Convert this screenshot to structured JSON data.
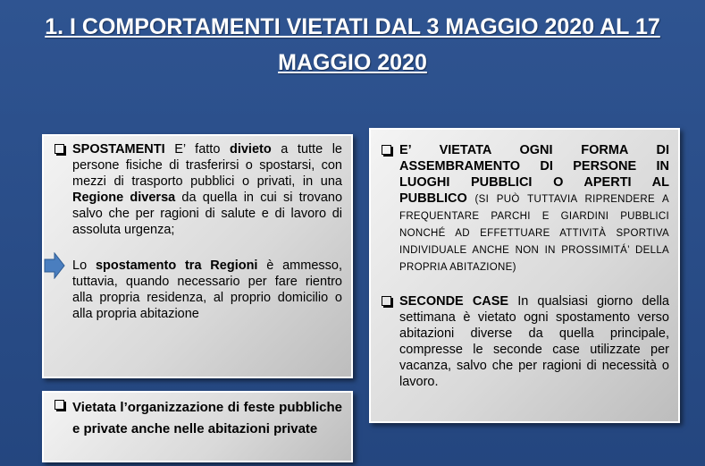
{
  "title": "1. I COMPORTAMENTI VIETATI DAL 3 MAGGIO 2020 AL 17 MAGGIO 2020",
  "left_box": {
    "paragraphs": [
      [
        {
          "strong": "SPOSTAMENTI"
        },
        " E’ fatto ",
        {
          "strong": "divieto"
        },
        " a tutte le persone fisiche di trasferirsi o spostarsi, con mezzi di trasporto pubblici o privati, in una ",
        {
          "strong": "Regione diversa"
        },
        " da quella in cui si trovano salvo che per ragioni di salute e di lavoro di assoluta urgenza;"
      ],
      [
        "Lo ",
        {
          "strong": "spostamento tra Regioni"
        },
        " è ammesso, tuttavia, quando necessario per fare rientro alla propria residenza, al proprio domicilio o alla propria abitazione"
      ]
    ]
  },
  "bottom_box": {
    "paragraphs": [
      [
        {
          "strong": "Vietata l’organizzazione di feste pubbliche e private anche nelle abitazioni private"
        }
      ]
    ]
  },
  "right_box": {
    "paragraphs": [
      [
        {
          "strong": "E’ VIETATA OGNI FORMA DI ASSEMBRAMENTO DI PERSONE IN LUOGHI PUBBLICI O APERTI AL PUBBLICO"
        },
        {
          "small": " (SI PUÒ TUTTAVIA RIPRENDERE A FREQUENTARE PARCHI E GIARDINI PUBBLICI NONCHÉ AD EFFETTUARE ATTIVITÀ SPORTIVA INDIVIDUALE ANCHE NON IN PROSSIMITÁ’ DELLA PROPRIA ABITAZIONE)"
        }
      ],
      [
        {
          "strong": "SECONDE CASE"
        },
        " In qualsiasi giorno della settimana è vietato ogni spostamento verso abitazioni diverse da quella principale, compresse le seconde case utilizzate per vacanza, salvo che per ragioni di necessità o lavoro."
      ]
    ]
  }
}
